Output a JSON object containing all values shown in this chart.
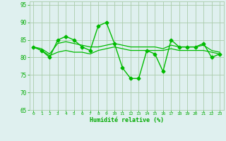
{
  "series": [
    {
      "x": [
        0,
        1,
        2,
        3,
        4,
        5,
        6,
        7,
        8,
        9,
        10,
        11,
        12,
        13,
        14,
        15,
        16,
        17,
        18,
        19,
        20,
        21,
        22,
        23
      ],
      "y": [
        83,
        82,
        80,
        85,
        86,
        85,
        83,
        82,
        89,
        90,
        84,
        77,
        74,
        74,
        82,
        81,
        76,
        85,
        83,
        83,
        83,
        84,
        80,
        81
      ],
      "color": "#00bb00",
      "marker": "D",
      "markersize": 2.5,
      "linewidth": 1.0
    },
    {
      "x": [
        0,
        1,
        2,
        3,
        4,
        5,
        6,
        7,
        8,
        9,
        10,
        11,
        12,
        13,
        14,
        15,
        16,
        17,
        18,
        19,
        20,
        21,
        22,
        23
      ],
      "y": [
        83,
        82.5,
        81,
        84,
        84.5,
        84,
        83.5,
        83,
        83,
        83.5,
        84,
        83.5,
        83,
        83,
        83,
        83,
        82.5,
        83.5,
        83,
        83,
        83,
        83.5,
        82,
        81.5
      ],
      "color": "#00bb00",
      "marker": null,
      "markersize": 0,
      "linewidth": 0.9
    },
    {
      "x": [
        0,
        1,
        2,
        3,
        4,
        5,
        6,
        7,
        8,
        9,
        10,
        11,
        12,
        13,
        14,
        15,
        16,
        17,
        18,
        19,
        20,
        21,
        22,
        23
      ],
      "y": [
        83,
        82,
        80.5,
        81.5,
        82,
        81.5,
        81.5,
        81,
        82,
        82.5,
        83,
        82.5,
        82,
        82,
        82,
        82,
        82,
        82.5,
        82,
        82,
        82,
        82,
        81.5,
        81
      ],
      "color": "#00bb00",
      "marker": null,
      "markersize": 0,
      "linewidth": 0.9
    }
  ],
  "xlabel": "Humidité relative (%)",
  "xlim": [
    -0.5,
    23.5
  ],
  "ylim": [
    65,
    96
  ],
  "yticks": [
    65,
    70,
    75,
    80,
    85,
    90,
    95
  ],
  "xticks": [
    0,
    1,
    2,
    3,
    4,
    5,
    6,
    7,
    8,
    9,
    10,
    11,
    12,
    13,
    14,
    15,
    16,
    17,
    18,
    19,
    20,
    21,
    22,
    23
  ],
  "grid_color": "#aaccaa",
  "bg_color": "#dff0ef",
  "xlabel_color": "#00aa00",
  "tick_color": "#00aa00",
  "figsize": [
    3.2,
    2.0
  ],
  "dpi": 100
}
